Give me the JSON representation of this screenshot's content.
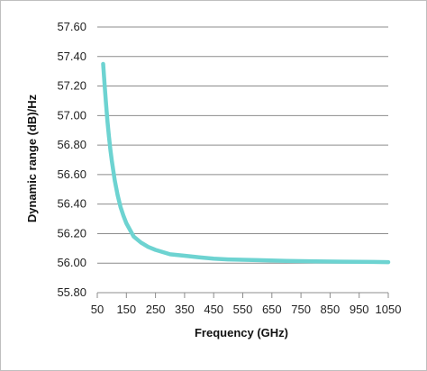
{
  "chart_data": {
    "type": "line",
    "title": "",
    "xlabel": "Frequency (GHz)",
    "ylabel": "Dynamic range (dB)/Hz",
    "xlim": [
      50,
      1050
    ],
    "ylim": [
      55.8,
      57.6
    ],
    "x_ticks": [
      "50",
      "150",
      "250",
      "350",
      "450",
      "550",
      "650",
      "750",
      "850",
      "950",
      "1050"
    ],
    "y_ticks": [
      "55.80",
      "56.00",
      "56.20",
      "56.40",
      "56.60",
      "56.80",
      "57.00",
      "57.20",
      "57.40",
      "57.60"
    ],
    "grid": "horizontal",
    "legend": "none",
    "series": [
      {
        "color": "#6dd3d1",
        "x": [
          70,
          75,
          80,
          85,
          90,
          95,
          100,
          110,
          120,
          130,
          140,
          150,
          175,
          200,
          225,
          250,
          300,
          350,
          400,
          450,
          500,
          600,
          700,
          800,
          900,
          1000,
          1050
        ],
        "y": [
          57.35,
          57.21,
          57.08,
          56.96,
          56.86,
          56.77,
          56.69,
          56.56,
          56.46,
          56.38,
          56.32,
          56.27,
          56.18,
          56.14,
          56.11,
          56.09,
          56.06,
          56.05,
          56.04,
          56.03,
          56.025,
          56.02,
          56.015,
          56.012,
          56.01,
          56.008,
          56.007
        ]
      }
    ]
  }
}
